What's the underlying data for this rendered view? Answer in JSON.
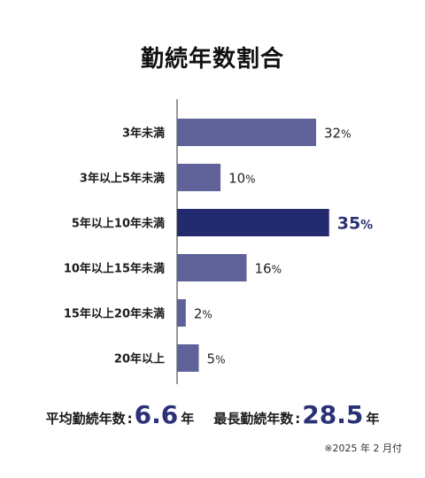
{
  "title": "勤続年数割合",
  "chart_data": {
    "type": "bar",
    "orientation": "horizontal",
    "categories": [
      "3年未満",
      "3年以上5年未満",
      "5年以上10年未満",
      "10年以上15年未満",
      "15年以上20年未満",
      "20年以上"
    ],
    "values": [
      32,
      10,
      35,
      16,
      2,
      5
    ],
    "value_suffix": "%",
    "highlight_index": 2,
    "xlim": [
      0,
      100
    ],
    "colors": {
      "bar": "#5f6399",
      "highlight": "#232a6e",
      "axis": "#333333"
    }
  },
  "footer": {
    "average_label": "平均勤続年数",
    "average_value": "6.6",
    "average_unit": "年",
    "max_label": "最長勤続年数",
    "max_value": "28.5",
    "max_unit": "年",
    "colon": ":",
    "note": "※2025 年 2 月付"
  }
}
